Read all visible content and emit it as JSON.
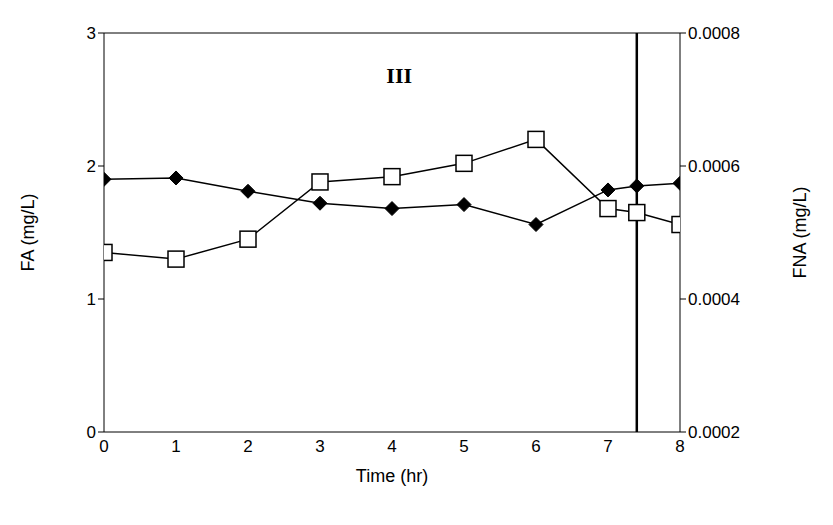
{
  "chart_data": {
    "type": "line",
    "x_label": "Time (hr)",
    "y_label": "FA (mg/L)",
    "y2_label": "FNA (mg/L)",
    "x": [
      0,
      1,
      2,
      3,
      4,
      5,
      6,
      7,
      7.4,
      8
    ],
    "series": [
      {
        "name": "FA",
        "color": "#000000",
        "marker": "diamond",
        "values": [
          1.9,
          1.91,
          1.81,
          1.72,
          1.68,
          1.71,
          1.56,
          1.82,
          1.85,
          1.87
        ]
      },
      {
        "name": "FNA",
        "color": "#000000",
        "marker": "square",
        "axis": "y2",
        "values": [
          0.00047,
          0.00046,
          0.00049,
          0.000576,
          0.000584,
          0.000604,
          0.00064,
          0.000536,
          0.00053,
          0.000512
        ]
      }
    ],
    "xlim": [
      0,
      8
    ],
    "xticks": [
      0,
      1,
      2,
      3,
      4,
      5,
      6,
      7,
      8
    ],
    "ylim": [
      0,
      3
    ],
    "yticks": [
      0,
      1,
      2,
      3
    ],
    "y2lim": [
      0.0002,
      0.0008
    ],
    "y2ticks": [
      0.0002,
      0.0004,
      0.0006,
      0.0008
    ],
    "vline_x": 7.4,
    "annotations": [
      {
        "text": "III",
        "x": 4.1,
        "y": 2.68
      }
    ],
    "grid": false,
    "legend": "none"
  }
}
